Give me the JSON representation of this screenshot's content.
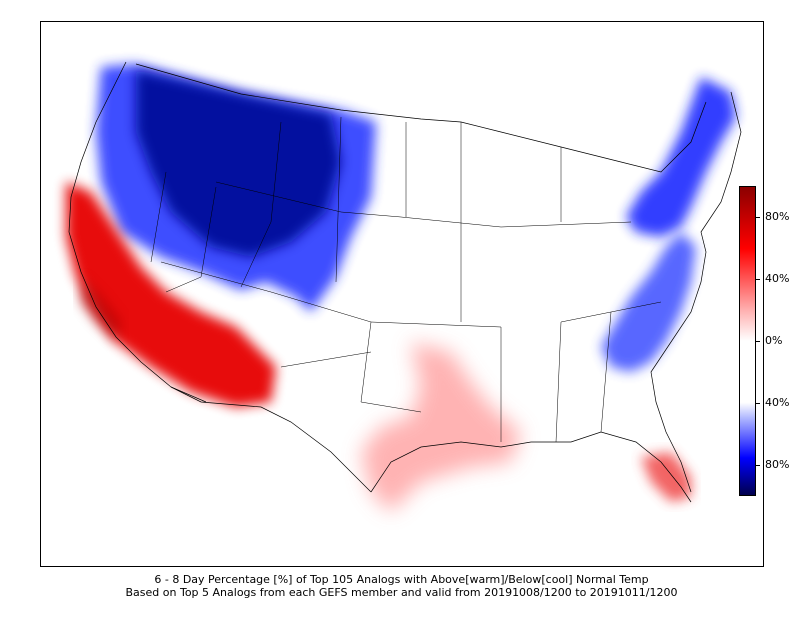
{
  "caption": {
    "line1": "6 - 8 Day Percentage [%] of Top 105 Analogs with Above[warm]/Below[cool] Normal Temp",
    "line2": "Based on Top 5 Analogs from each GEFS member and valid from 20191008/1200 to 20191011/1200"
  },
  "colorbar": {
    "ticks": [
      "80%",
      "40%",
      "0%",
      "40%",
      "80%"
    ],
    "colors": {
      "warm_max": "#8b0000",
      "warm_mid": "#ff0000",
      "neutral": "#ffffff",
      "cool_mid": "#0000ff",
      "cool_max": "#00004d"
    }
  },
  "regions": [
    {
      "name": "northern-rockies-plains-cool",
      "category": "below-normal",
      "intensity": "very-high"
    },
    {
      "name": "northeast-cool",
      "category": "below-normal",
      "intensity": "high"
    },
    {
      "name": "mid-atlantic-southeast-cool",
      "category": "below-normal",
      "intensity": "high"
    },
    {
      "name": "california-southwest-warm",
      "category": "above-normal",
      "intensity": "very-high"
    },
    {
      "name": "texas-gulf-coast-warm",
      "category": "above-normal",
      "intensity": "low"
    },
    {
      "name": "south-florida-warm",
      "category": "above-normal",
      "intensity": "moderate"
    }
  ]
}
